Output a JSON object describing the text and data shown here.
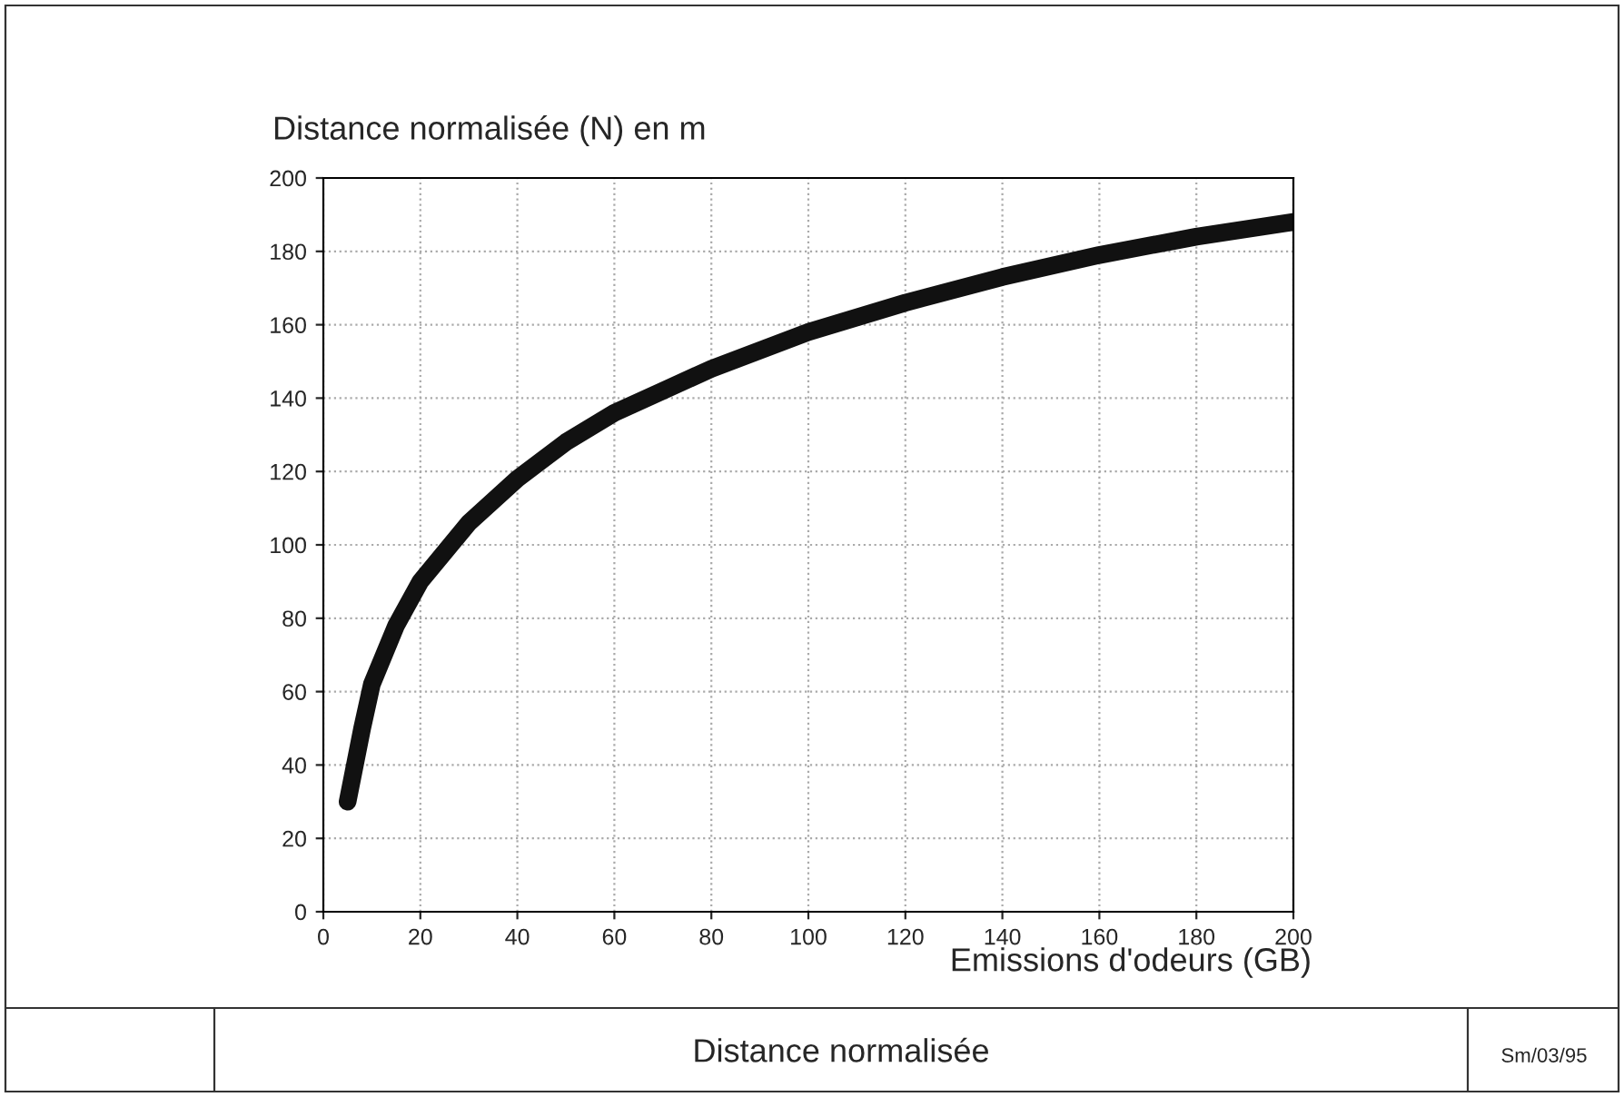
{
  "chart_data": {
    "type": "line",
    "title": "Distance normalisée",
    "xlabel": "Emissions d'odeurs (GB)",
    "ylabel": "Distance normalisée (N) en m",
    "annotations": [
      "Sm/03/95"
    ],
    "x": [
      5,
      8,
      10,
      15,
      20,
      30,
      40,
      50,
      60,
      70,
      80,
      100,
      120,
      140,
      160,
      180,
      200
    ],
    "series": [
      {
        "color": "#111111",
        "values": [
          30,
          50,
          62,
          78,
          90,
          106,
          118,
          128,
          136,
          142,
          148,
          158,
          166,
          173,
          179,
          184,
          188
        ]
      }
    ],
    "xlim": [
      0,
      200
    ],
    "xticks": [
      0,
      20,
      40,
      60,
      80,
      100,
      120,
      140,
      160,
      180,
      200
    ],
    "ylim": [
      0,
      200
    ],
    "yticks": [
      0,
      20,
      40,
      60,
      80,
      100,
      120,
      140,
      160,
      180,
      200
    ],
    "grid": true,
    "line_style": "solid",
    "marker": "none"
  }
}
